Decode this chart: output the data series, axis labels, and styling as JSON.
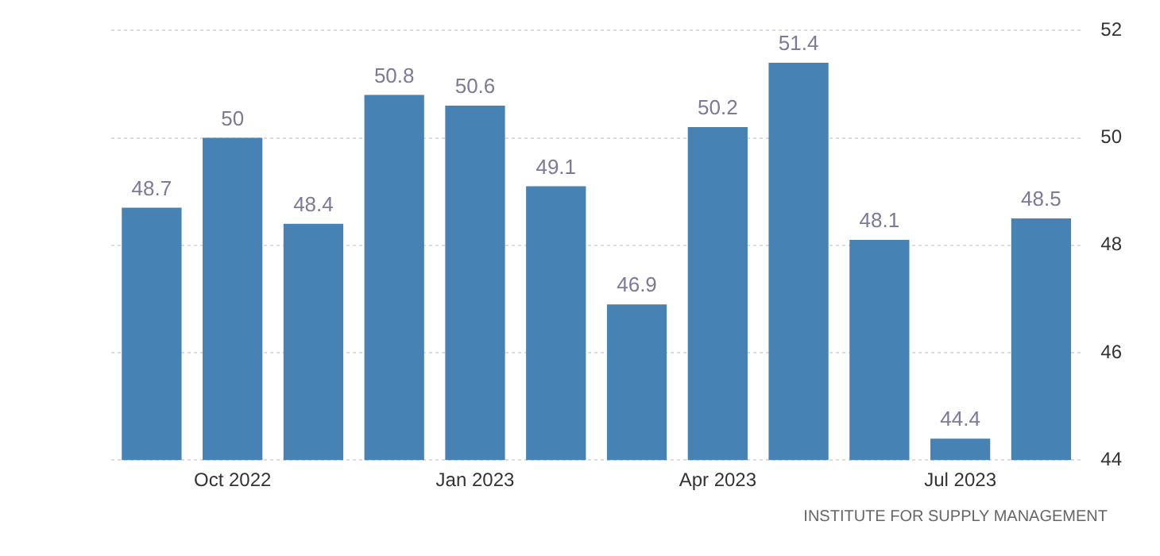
{
  "chart_data": {
    "type": "bar",
    "categories": [
      null,
      "Oct 2022",
      null,
      null,
      "Jan 2023",
      null,
      null,
      "Apr 2023",
      null,
      null,
      "Jul 2023",
      null
    ],
    "values": [
      48.7,
      50,
      48.4,
      50.8,
      50.6,
      49.1,
      46.9,
      50.2,
      51.4,
      48.1,
      44.4,
      48.5
    ],
    "color": "#4682b4",
    "ylim": [
      44,
      52
    ],
    "yticks": [
      44,
      46,
      48,
      50,
      52
    ],
    "grid": "y",
    "data_labels": true,
    "legend": false,
    "annotations": [
      "INSTITUTE FOR SUPPLY MANAGEMENT"
    ]
  }
}
